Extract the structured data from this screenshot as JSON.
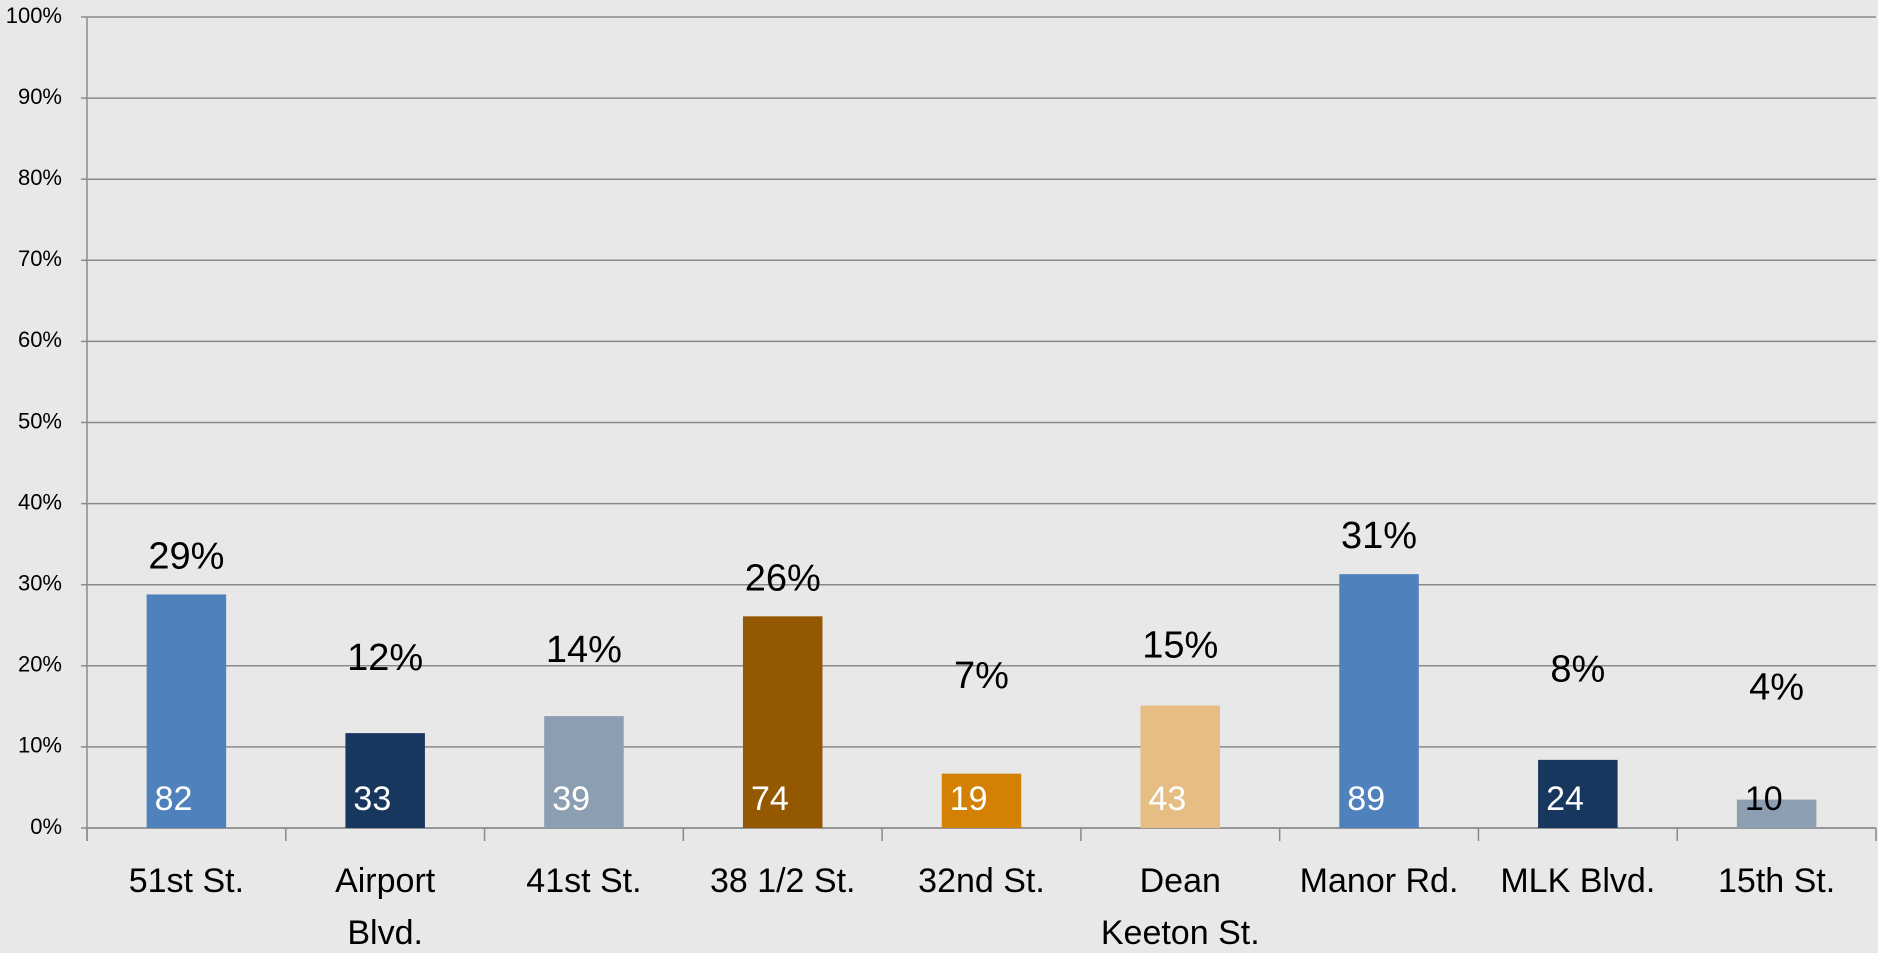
{
  "chart_data": {
    "type": "bar",
    "categories": [
      "51st St.",
      "Airport Blvd.",
      "41st St.",
      "38 1/2 St.",
      "32nd St.",
      "Dean Keeton St.",
      "Manor Rd.",
      "MLK Blvd.",
      "15th St."
    ],
    "values": [
      28.8,
      11.7,
      13.8,
      26.1,
      6.7,
      15.1,
      31.3,
      8.4,
      3.5
    ],
    "value_labels": [
      "29%",
      "12%",
      "14%",
      "26%",
      "7%",
      "15%",
      "31%",
      "8%",
      "4%"
    ],
    "counts": [
      82,
      33,
      39,
      74,
      19,
      43,
      89,
      24,
      10
    ],
    "colors": [
      "#4f81bd",
      "#17375e",
      "#8c9eb2",
      "#945800",
      "#d38003",
      "#e6bd82",
      "#4f81bd",
      "#17375e",
      "#8c9eb2"
    ],
    "ylim": [
      0,
      100
    ],
    "yticks": [
      {
        "value": 0,
        "label": "0%"
      },
      {
        "value": 10,
        "label": "10%"
      },
      {
        "value": 20,
        "label": "20%"
      },
      {
        "value": 30,
        "label": "30%"
      },
      {
        "value": 40,
        "label": "40%"
      },
      {
        "value": 50,
        "label": "50%"
      },
      {
        "value": 60,
        "label": "60%"
      },
      {
        "value": 70,
        "label": "70%"
      },
      {
        "value": 80,
        "label": "80%"
      },
      {
        "value": 90,
        "label": "90%"
      },
      {
        "value": 100,
        "label": "100%"
      }
    ],
    "grid": true
  }
}
